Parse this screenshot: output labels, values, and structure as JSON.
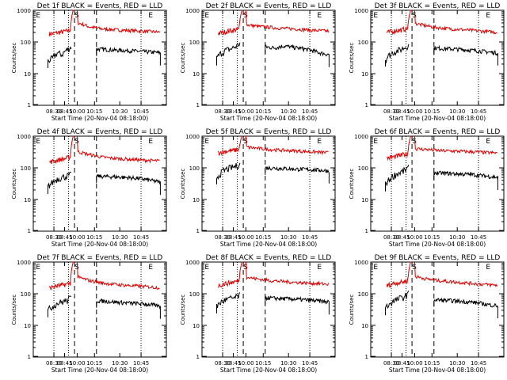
{
  "figure": {
    "colors": {
      "events": "#000000",
      "lld": "#dd0000",
      "axis": "#000000"
    }
  },
  "chart_data": [
    {
      "type": "line",
      "title": "Det 1f BLACK = Events, RED = LLD",
      "xlabel": "Start Time (20-Nov-04 08:18:00)",
      "ylabel": "Counts/sec",
      "yscale": "log",
      "ylim": [
        1,
        1000
      ],
      "x_ticks": [
        "08:30",
        "08:45",
        "10:00",
        "10:15",
        "10:30",
        "10:45"
      ],
      "y_ticks": [
        "1",
        "10",
        "100",
        "1000"
      ],
      "markers": [
        "E",
        "S",
        "E"
      ],
      "series": [
        {
          "values": {
            "events_pre": [
              25,
              30,
              45,
              40,
              55,
              70
            ],
            "events_post": [
              60,
              58,
              55,
              54,
              52,
              50,
              48,
              45
            ],
            "lld_pre": [
              180,
              190,
              200,
              210,
              230,
              260
            ],
            "lld_post": [
              400,
              300,
              260,
              245,
              235,
              225,
              215,
              205
            ]
          }
        }
      ]
    },
    {
      "type": "line",
      "title": "Det 2f BLACK = Events, RED = LLD",
      "xlabel": "Start Time (20-Nov-04 08:18:00)",
      "ylabel": "Counts/sec",
      "yscale": "log",
      "ylim": [
        1,
        1000
      ],
      "x_ticks": [
        "08:30",
        "08:45",
        "10:00",
        "10:15",
        "10:30",
        "10:45"
      ],
      "y_ticks": [
        "1",
        "10",
        "100",
        "1000"
      ],
      "markers": [
        "E",
        "S",
        "E"
      ],
      "series": [
        {
          "values": {
            "events_pre": [
              30,
              45,
              55,
              60,
              70,
              90
            ],
            "events_post": [
              70,
              65,
              75,
              68,
              62,
              55,
              45,
              40
            ],
            "lld_pre": [
              190,
              200,
              220,
              230,
              250,
              270
            ],
            "lld_post": [
              350,
              310,
              290,
              270,
              260,
              245,
              230,
              220
            ]
          }
        }
      ]
    },
    {
      "type": "line",
      "title": "Det 3f BLACK = Events, RED = LLD",
      "xlabel": "Start Time (20-Nov-04 08:18:00)",
      "ylabel": "Counts/sec",
      "yscale": "log",
      "ylim": [
        1,
        1000
      ],
      "x_ticks": [
        "08:30",
        "08:45",
        "10:00",
        "10:15",
        "10:30",
        "10:45"
      ],
      "y_ticks": [
        "1",
        "10",
        "100",
        "1000"
      ],
      "markers": [
        "E",
        "S",
        "E"
      ],
      "series": [
        {
          "values": {
            "events_pre": [
              28,
              40,
              50,
              55,
              65,
              80
            ],
            "events_post": [
              65,
              62,
              60,
              58,
              55,
              52,
              48,
              45
            ],
            "lld_pre": [
              200,
              210,
              230,
              240,
              260,
              290
            ],
            "lld_post": [
              380,
              320,
              280,
              260,
              245,
              230,
              215,
              200
            ]
          }
        }
      ]
    },
    {
      "type": "line",
      "title": "Det 4f BLACK = Events, RED = LLD",
      "xlabel": "Start Time (20-Nov-04 08:18:00)",
      "ylabel": "Counts/sec",
      "yscale": "log",
      "ylim": [
        1,
        1000
      ],
      "x_ticks": [
        "08:30",
        "08:45",
        "10:00",
        "10:15",
        "10:30",
        "10:45"
      ],
      "y_ticks": [
        "1",
        "10",
        "100",
        "1000"
      ],
      "markers": [
        "E",
        "S",
        "E"
      ],
      "series": [
        {
          "values": {
            "events_pre": [
              25,
              35,
              45,
              50,
              55,
              60
            ],
            "events_post": [
              55,
              53,
              52,
              50,
              48,
              45,
              40,
              35
            ],
            "lld_pre": [
              150,
              165,
              180,
              190,
              210,
              230
            ],
            "lld_post": [
              320,
              260,
              220,
              200,
              190,
              180,
              172,
              165
            ]
          }
        }
      ]
    },
    {
      "type": "line",
      "title": "Det 5f BLACK = Events, RED = LLD",
      "xlabel": "Start Time (20-Nov-04 08:18:00)",
      "ylabel": "Counts/sec",
      "yscale": "log",
      "ylim": [
        1,
        1000
      ],
      "x_ticks": [
        "08:30",
        "08:45",
        "10:00",
        "10:15",
        "10:30",
        "10:45"
      ],
      "y_ticks": [
        "1",
        "10",
        "100",
        "1000"
      ],
      "markers": [
        "E",
        "S",
        "E"
      ],
      "series": [
        {
          "values": {
            "events_pre": [
              50,
              70,
              90,
              100,
              110,
              130
            ],
            "events_post": [
              100,
              98,
              95,
              92,
              90,
              88,
              85,
              80
            ],
            "lld_pre": [
              300,
              320,
              340,
              350,
              370,
              400
            ],
            "lld_post": [
              450,
              410,
              380,
              360,
              345,
              330,
              315,
              300
            ]
          }
        }
      ]
    },
    {
      "type": "line",
      "title": "Det 6f BLACK = Events, RED = LLD",
      "xlabel": "Start Time (20-Nov-04 08:18:00)",
      "ylabel": "Counts/sec",
      "yscale": "log",
      "ylim": [
        1,
        1000
      ],
      "x_ticks": [
        "08:30",
        "08:45",
        "10:00",
        "10:15",
        "10:30",
        "10:45"
      ],
      "y_ticks": [
        "1",
        "10",
        "100",
        "1000"
      ],
      "markers": [
        "E",
        "S",
        "E"
      ],
      "series": [
        {
          "values": {
            "events_pre": [
              30,
              45,
              60,
              70,
              80,
              100
            ],
            "events_post": [
              70,
              68,
              66,
              64,
              62,
              58,
              54,
              50
            ],
            "lld_pre": [
              200,
              215,
              230,
              250,
              270,
              300
            ],
            "lld_post": [
              400,
              380,
              350,
              340,
              330,
              320,
              305,
              295
            ]
          }
        }
      ]
    },
    {
      "type": "line",
      "title": "Det 7f BLACK = Events, RED = LLD",
      "xlabel": "Start Time (20-Nov-04 08:18:00)",
      "ylabel": "Counts/sec",
      "yscale": "log",
      "ylim": [
        1,
        1000
      ],
      "x_ticks": [
        "08:30",
        "08:45",
        "10:00",
        "10:15",
        "10:30",
        "10:45"
      ],
      "y_ticks": [
        "1",
        "10",
        "100",
        "1000"
      ],
      "markers": [
        "E",
        "S",
        "E"
      ],
      "series": [
        {
          "values": {
            "events_pre": [
              30,
              40,
              50,
              55,
              60,
              75
            ],
            "events_post": [
              60,
              58,
              55,
              52,
              50,
              48,
              45,
              40
            ],
            "lld_pre": [
              150,
              170,
              180,
              190,
              210,
              230
            ],
            "lld_post": [
              330,
              260,
              220,
              200,
              185,
              175,
              165,
              155
            ]
          }
        }
      ]
    },
    {
      "type": "line",
      "title": "Det 8f BLACK = Events, RED = LLD",
      "xlabel": "Start Time (20-Nov-04 08:18:00)",
      "ylabel": "Counts/sec",
      "yscale": "log",
      "ylim": [
        1,
        1000
      ],
      "x_ticks": [
        "08:30",
        "08:45",
        "10:00",
        "10:15",
        "10:30",
        "10:45"
      ],
      "y_ticks": [
        "1",
        "10",
        "100",
        "1000"
      ],
      "markers": [
        "E",
        "S",
        "E"
      ],
      "series": [
        {
          "values": {
            "events_pre": [
              40,
              55,
              65,
              70,
              75,
              90
            ],
            "events_post": [
              75,
              72,
              70,
              68,
              65,
              62,
              58,
              55
            ],
            "lld_pre": [
              180,
              200,
              215,
              230,
              250,
              270
            ],
            "lld_post": [
              330,
              290,
              260,
              245,
              230,
              220,
              210,
              200
            ]
          }
        }
      ]
    },
    {
      "type": "line",
      "title": "Det 9f BLACK = Events, RED = LLD",
      "xlabel": "Start Time (20-Nov-04 08:18:00)",
      "ylabel": "Counts/sec",
      "yscale": "log",
      "ylim": [
        1,
        1000
      ],
      "x_ticks": [
        "08:30",
        "08:45",
        "10:00",
        "10:15",
        "10:30",
        "10:45"
      ],
      "y_ticks": [
        "1",
        "10",
        "100",
        "1000"
      ],
      "markers": [
        "E",
        "S",
        "E"
      ],
      "series": [
        {
          "values": {
            "events_pre": [
              35,
              50,
              60,
              70,
              80,
              100
            ],
            "events_post": [
              65,
              62,
              60,
              57,
              55,
              50,
              45,
              42
            ],
            "lld_pre": [
              180,
              200,
              220,
              230,
              250,
              280
            ],
            "lld_post": [
              350,
              290,
              260,
              240,
              225,
              210,
              195,
              185
            ]
          }
        }
      ]
    }
  ]
}
